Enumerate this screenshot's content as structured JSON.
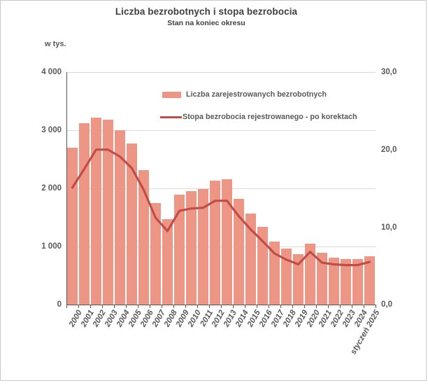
{
  "header": {
    "title": "Liczba bezrobotnych i stopa bezrobocia",
    "subtitle": "Stan na koniec okresu"
  },
  "left_axis": {
    "unit_label": "w tys.",
    "tick_labels": [
      "4 000",
      "3 000",
      "2 000",
      "1 000",
      "0"
    ],
    "tick_values": [
      4000,
      3000,
      2000,
      1000,
      0
    ]
  },
  "right_axis": {
    "tick_labels": [
      "30,0",
      "20,0",
      "10,0",
      "0,0"
    ],
    "tick_values": [
      30,
      20,
      10,
      0
    ]
  },
  "legend": {
    "items": [
      {
        "label": "Liczba zarejestrowanych bezrobotnych",
        "marker": "bar-swatch"
      },
      {
        "label": "Stopa bezrobocia rejestrowanego - po korektach",
        "marker": "line-swatch"
      }
    ]
  },
  "colors": {
    "bar_fill": "#ee9686",
    "line_stroke": "#c04d48",
    "gridline": "#d9d9d9",
    "axis": "#555555",
    "text": "#595959",
    "title_text": "#3f3f3f",
    "frame_border": "#c9c9c9"
  },
  "chart_data": {
    "type": "combo",
    "title": "Liczba bezrobotnych i stopa bezrobocia",
    "subtitle": "Stan na koniec okresu",
    "categories": [
      "2000",
      "2001",
      "2002",
      "2003",
      "2004",
      "2005",
      "2006",
      "2007",
      "2008",
      "2009",
      "2010",
      "2011",
      "2012",
      "2013",
      "2014",
      "2015",
      "2016",
      "2017",
      "2018",
      "2019",
      "2020",
      "2021",
      "2022",
      "2023",
      "2024",
      "styczeń 2025"
    ],
    "series": [
      {
        "name": "Liczba zarejestrowanych bezrobotnych",
        "type": "bar",
        "axis": "left",
        "unit": "tys.",
        "color": "#ee9686",
        "values": [
          2702.6,
          3115.1,
          3217.0,
          3175.7,
          2999.6,
          2773.0,
          2309.4,
          1746.6,
          1473.8,
          1892.7,
          1954.7,
          1982.7,
          2136.8,
          2157.9,
          1825.2,
          1563.3,
          1335.2,
          1081.7,
          968.9,
          866.4,
          1046.4,
          895.2,
          812.3,
          788.2,
          786.9,
          837.1
        ]
      },
      {
        "name": "Stopa bezrobocia rejestrowanego - po korektach",
        "type": "line",
        "axis": "right",
        "unit": "%",
        "color": "#c04d48",
        "values": [
          15.1,
          17.5,
          20.0,
          20.0,
          19.1,
          17.6,
          14.8,
          11.2,
          9.5,
          12.1,
          12.4,
          12.5,
          13.4,
          13.4,
          11.4,
          9.7,
          8.2,
          6.6,
          5.8,
          5.2,
          6.8,
          5.4,
          5.2,
          5.1,
          5.1,
          5.5
        ]
      }
    ],
    "left_ylim": [
      0,
      4000
    ],
    "right_ylim": [
      0,
      30
    ],
    "grid": "horizontal gridlines at left-axis steps of 1000",
    "legend_position": "inside-top"
  }
}
